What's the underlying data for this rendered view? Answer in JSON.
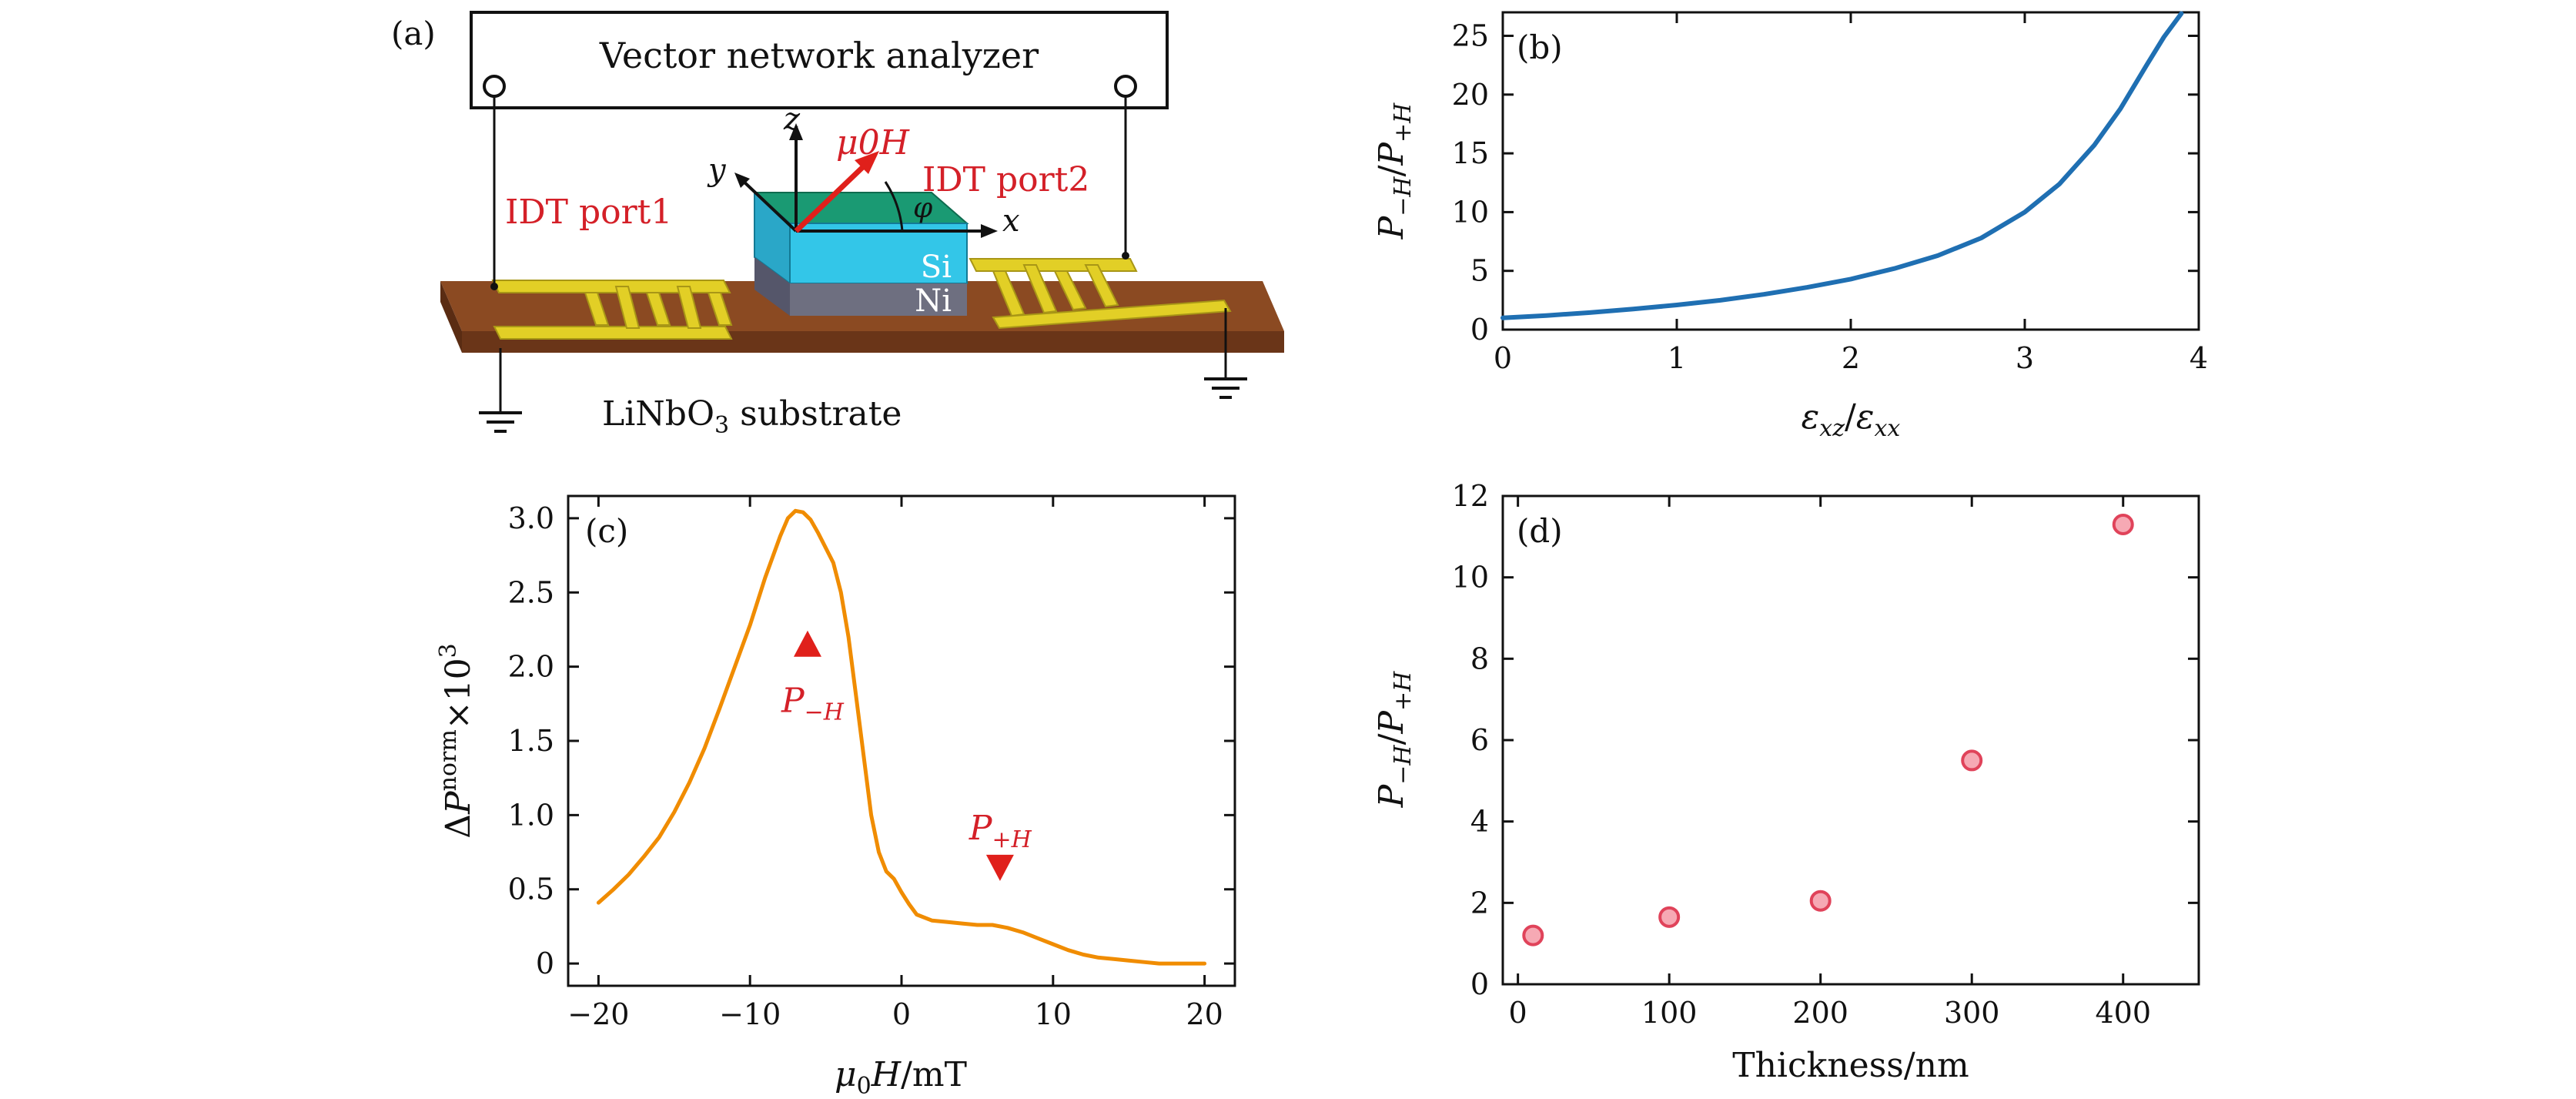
{
  "panel_a": {
    "label": "(a)",
    "analyzer": "Vector network analyzer",
    "port1": "IDT port1",
    "port2": "IDT port2",
    "field": "μ0H",
    "axis_x": "x",
    "axis_y": "y",
    "axis_z": "z",
    "angle": "φ",
    "layer_si": "Si",
    "layer_ni": "Ni",
    "substrate": "LiNbO3 substrate",
    "colors": {
      "substrate": "#8b4a22",
      "electrode": "#e2cf26",
      "si": "#33c6e8",
      "si_top": "#1a9a73",
      "ni": "#6e6f80",
      "field_arrow": "#e0201b"
    }
  },
  "chart_data": [
    {
      "panel": "(b)",
      "type": "line",
      "xlabel": "εxz/εxx",
      "ylabel": "P−H/P+H",
      "xlim": [
        0,
        4
      ],
      "ylim": [
        0,
        27
      ],
      "xticks": [
        "0",
        "1",
        "2",
        "3",
        "4"
      ],
      "yticks": [
        "0",
        "5",
        "10",
        "15",
        "20",
        "25"
      ],
      "color": "#1f6fb2",
      "series": [
        {
          "x": [
            0,
            0.25,
            0.5,
            0.75,
            1.0,
            1.25,
            1.5,
            1.75,
            2.0,
            2.25,
            2.5,
            2.75,
            3.0,
            3.2,
            3.4,
            3.55,
            3.7,
            3.8,
            3.9
          ],
          "y": [
            1.0,
            1.2,
            1.45,
            1.75,
            2.1,
            2.5,
            3.0,
            3.6,
            4.3,
            5.2,
            6.3,
            7.8,
            10.0,
            12.4,
            15.7,
            18.8,
            22.5,
            24.9,
            26.9
          ]
        }
      ]
    },
    {
      "panel": "(c)",
      "type": "line",
      "xlabel": "μ0H/mT",
      "ylabel": "ΔPnorm×103",
      "xlim": [
        -22,
        22
      ],
      "ylim": [
        -0.15,
        3.15
      ],
      "xticks": [
        "−20",
        "−10",
        "0",
        "10",
        "20"
      ],
      "yticks": [
        "0",
        "0.5",
        "1.0",
        "1.5",
        "2.0",
        "2.5",
        "3.0"
      ],
      "color": "#f08c00",
      "series": [
        {
          "x": [
            -20,
            -19,
            -18,
            -17,
            -16,
            -15,
            -14,
            -13,
            -12,
            -11,
            -10,
            -9,
            -8,
            -7.5,
            -7,
            -6.5,
            -6,
            -5.5,
            -5,
            -4.5,
            -4,
            -3.5,
            -3,
            -2.5,
            -2,
            -1.5,
            -1,
            -0.5,
            0,
            0.5,
            1,
            2,
            3,
            4,
            5,
            6,
            7,
            8,
            9,
            10,
            11,
            12,
            13,
            14,
            15,
            16,
            17,
            18,
            19,
            20
          ],
          "y": [
            0.41,
            0.5,
            0.6,
            0.72,
            0.85,
            1.02,
            1.22,
            1.45,
            1.72,
            2.0,
            2.28,
            2.6,
            2.88,
            3.0,
            3.05,
            3.04,
            2.99,
            2.9,
            2.8,
            2.7,
            2.5,
            2.2,
            1.8,
            1.4,
            1.0,
            0.75,
            0.62,
            0.57,
            0.48,
            0.4,
            0.33,
            0.29,
            0.28,
            0.27,
            0.26,
            0.26,
            0.24,
            0.21,
            0.17,
            0.13,
            0.09,
            0.06,
            0.04,
            0.03,
            0.02,
            0.01,
            0.0,
            0.0,
            0.0,
            0.0
          ]
        }
      ],
      "annotations": [
        {
          "text": "P−H",
          "marker": "up-triangle",
          "x": -6.2,
          "y": 2.15
        },
        {
          "text": "P+H",
          "marker": "down-triangle",
          "x": 6.5,
          "y": 0.65
        }
      ]
    },
    {
      "panel": "(d)",
      "type": "scatter",
      "xlabel": "Thickness/nm",
      "ylabel": "P−H/P+H",
      "xlim": [
        -10,
        450
      ],
      "ylim": [
        0,
        12
      ],
      "xticks": [
        "0",
        "100",
        "200",
        "300",
        "400"
      ],
      "yticks": [
        "0",
        "2",
        "4",
        "6",
        "8",
        "10",
        "12"
      ],
      "color": "#e0435a",
      "series": [
        {
          "x": [
            10,
            100,
            200,
            300,
            400
          ],
          "y": [
            1.2,
            1.65,
            2.05,
            5.5,
            11.3
          ]
        }
      ]
    }
  ]
}
